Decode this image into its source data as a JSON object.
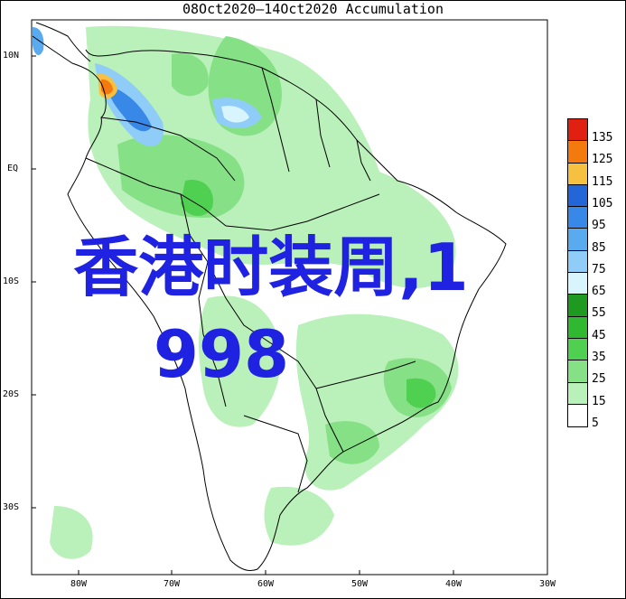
{
  "title": "08Oct2020—14Oct2020 Accumulation",
  "lat_labels": [
    "10N",
    "EQ",
    "10S",
    "20S",
    "30S"
  ],
  "lon_labels": [
    "80W",
    "70W",
    "60W",
    "50W",
    "40W",
    "30W"
  ],
  "legend": {
    "levels": [
      "135",
      "125",
      "115",
      "105",
      "95",
      "85",
      "75",
      "65",
      "55",
      "45",
      "35",
      "25",
      "15",
      "5"
    ],
    "colors": [
      "#e02010",
      "#f47a10",
      "#f6c040",
      "#2266d8",
      "#3888e8",
      "#5aaaf0",
      "#90ccf8",
      "#d8f4fc",
      "#1e9a20",
      "#30b830",
      "#50d050",
      "#86e086",
      "#baf0ba",
      "#ffffff"
    ]
  },
  "overlay_text": [
    "香港时装周,1",
    "998"
  ]
}
